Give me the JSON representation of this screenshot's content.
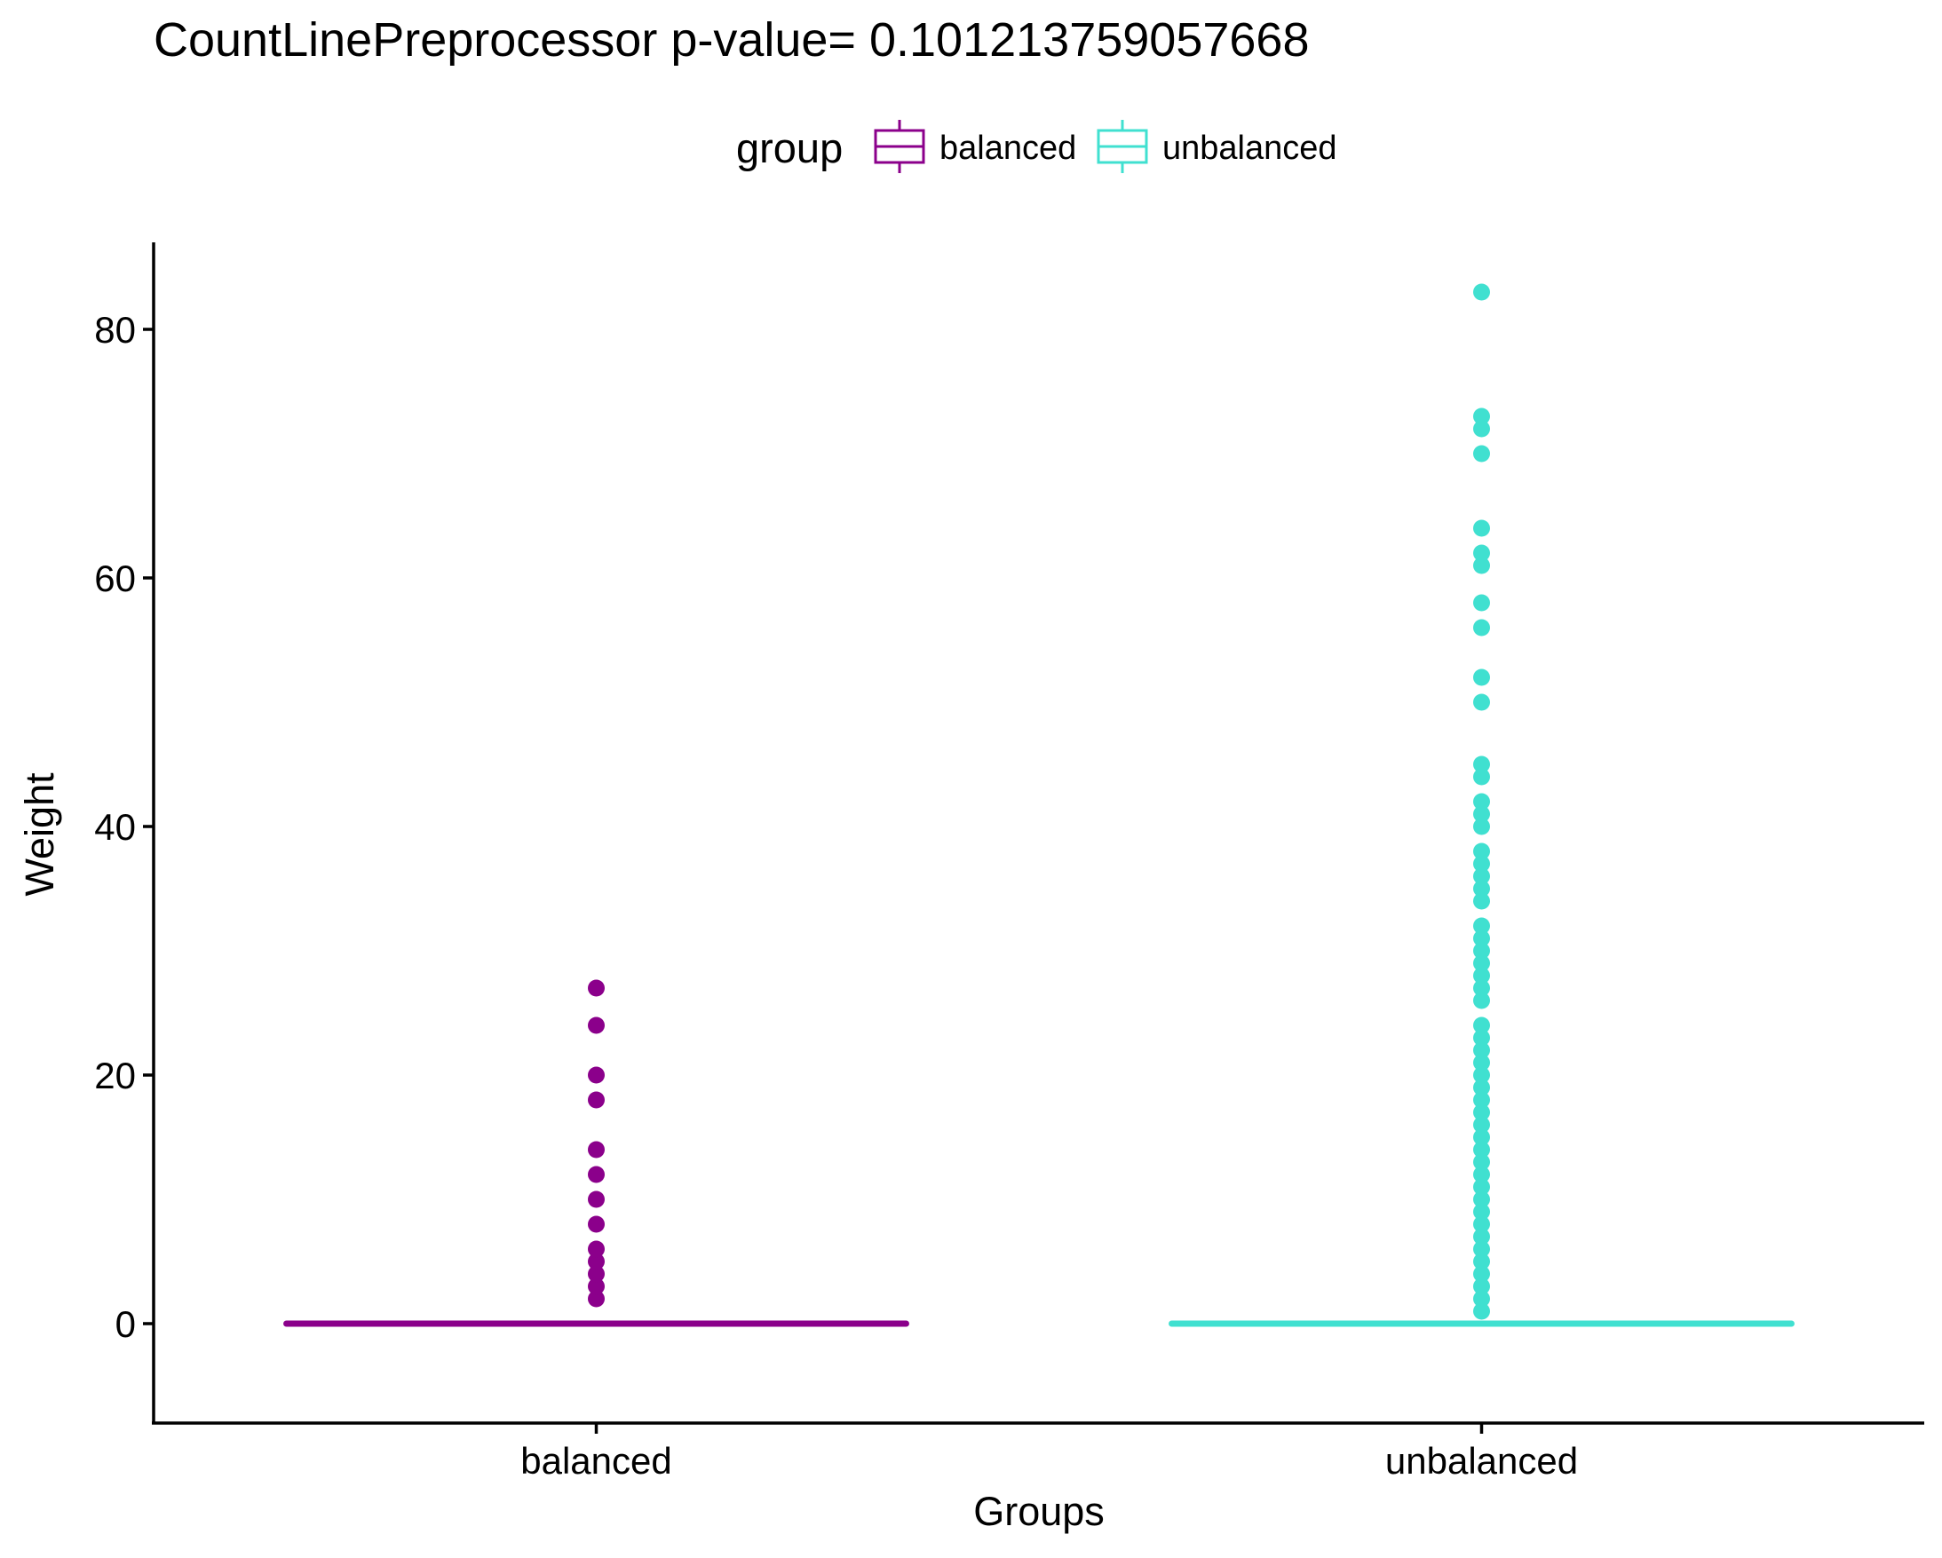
{
  "chart_data": {
    "type": "box",
    "title": "CountLinePreprocessor  p-value= 0.101213759057668",
    "xlabel": "Groups",
    "ylabel": "Weight",
    "ylim": [
      -8,
      87
    ],
    "yticks": [
      0,
      20,
      40,
      60,
      80
    ],
    "categories": [
      "balanced",
      "unbalanced"
    ],
    "legend": {
      "title": "group",
      "position": "top",
      "entries": [
        "balanced",
        "unbalanced"
      ]
    },
    "grid": false,
    "series": [
      {
        "name": "balanced",
        "color": "#8B008B",
        "box": {
          "min": 0,
          "q1": 0,
          "median": 0,
          "q3": 0,
          "max": 0
        },
        "outliers": [
          2,
          3,
          4,
          5,
          6,
          8,
          10,
          12,
          14,
          18,
          20,
          24,
          27
        ]
      },
      {
        "name": "unbalanced",
        "color": "#40E0D0",
        "box": {
          "min": 0,
          "q1": 0,
          "median": 0,
          "q3": 0,
          "max": 0
        },
        "outliers": [
          1,
          2,
          3,
          4,
          5,
          6,
          7,
          8,
          9,
          10,
          11,
          12,
          13,
          14,
          15,
          16,
          17,
          18,
          19,
          20,
          21,
          22,
          23,
          24,
          26,
          27,
          28,
          29,
          30,
          31,
          32,
          34,
          35,
          36,
          37,
          38,
          40,
          41,
          42,
          44,
          45,
          50,
          52,
          56,
          58,
          61,
          62,
          64,
          70,
          72,
          73,
          83
        ]
      }
    ]
  }
}
